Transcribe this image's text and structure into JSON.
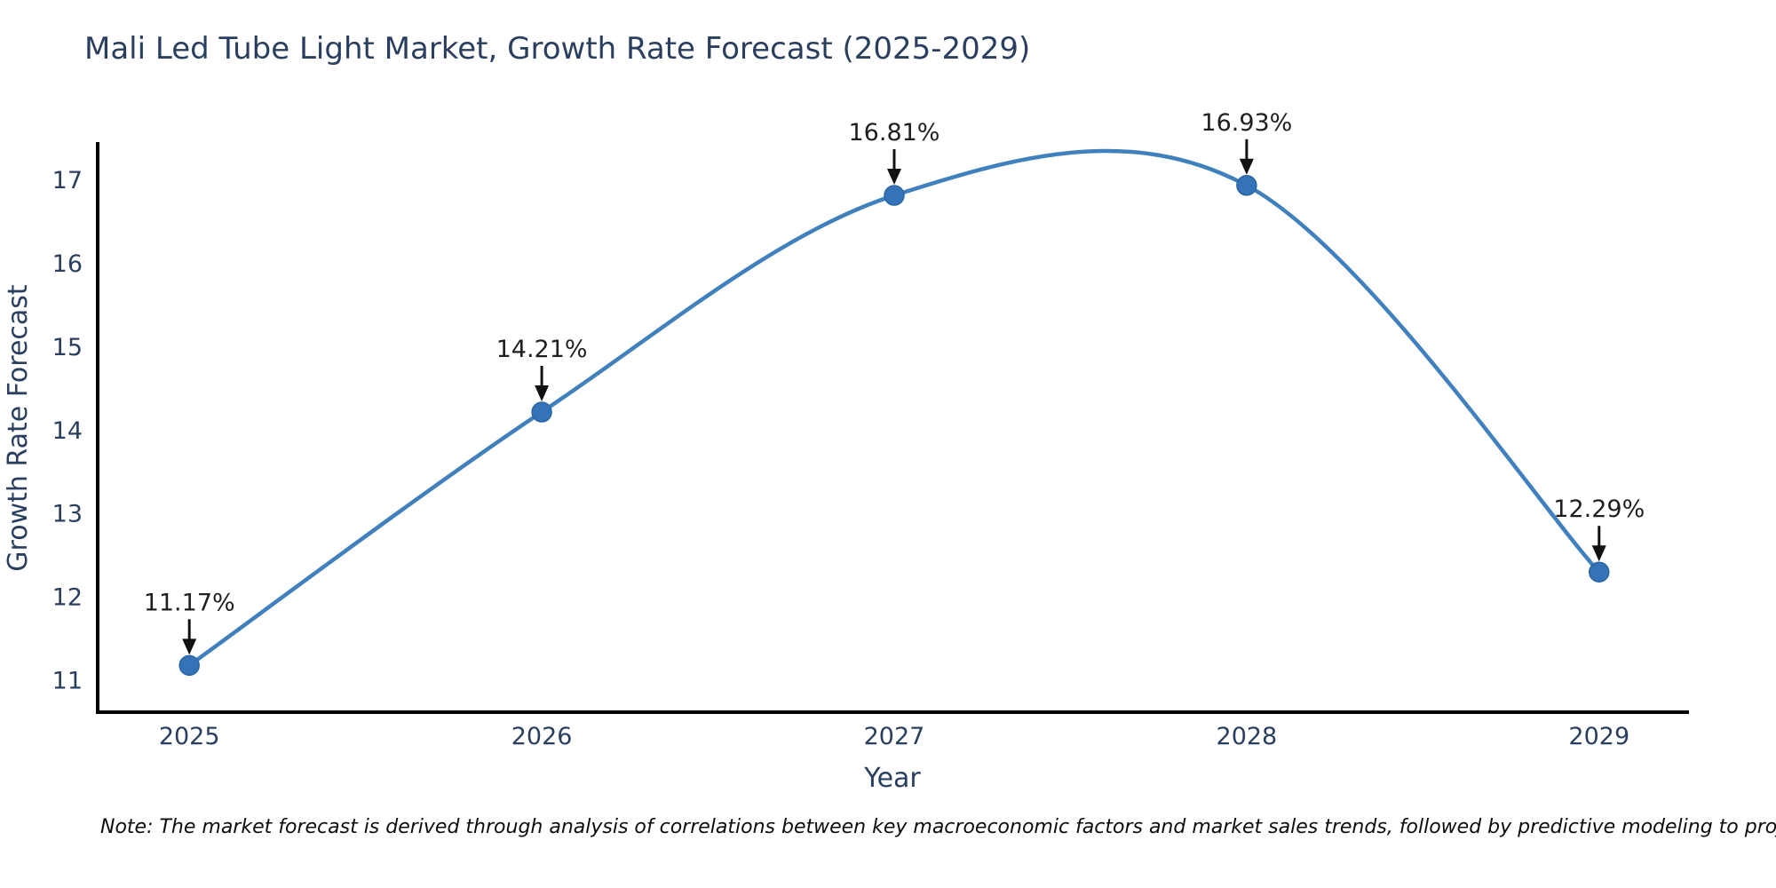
{
  "chart_data": {
    "type": "line",
    "title": "Mali Led Tube Light Market, Growth Rate Forecast (2025-2029)",
    "xlabel": "Year",
    "ylabel": "Growth Rate Forecast",
    "x": [
      2025,
      2026,
      2027,
      2028,
      2029
    ],
    "series": [
      {
        "name": "Growth Rate Forecast",
        "values": [
          11.17,
          14.21,
          16.81,
          16.93,
          12.29
        ]
      }
    ],
    "point_labels": [
      "11.17%",
      "14.21%",
      "16.81%",
      "16.93%",
      "12.29%"
    ],
    "xticks": [
      "2025",
      "2026",
      "2027",
      "2028",
      "2029"
    ],
    "yticks": [
      11,
      12,
      13,
      14,
      15,
      16,
      17
    ],
    "xlim": [
      2024.74,
      2029.25
    ],
    "ylim": [
      10.63,
      17.45
    ],
    "line_shape": "spline",
    "grid": false,
    "legend_position": "none",
    "colors": {
      "line": "#3f80bd",
      "marker": "#3473b8",
      "marker_edge": "#2b66a4",
      "axis": "#000000",
      "arrow": "#111111",
      "text": "#2a3f5f",
      "annotation_text": "#1f1f1f",
      "background": "#ffffff"
    }
  },
  "note": {
    "text": "Note: The market forecast is derived through analysis of correlations between key macroeconomic factors and market sales trends, followed by predictive modeling to project future sales"
  }
}
